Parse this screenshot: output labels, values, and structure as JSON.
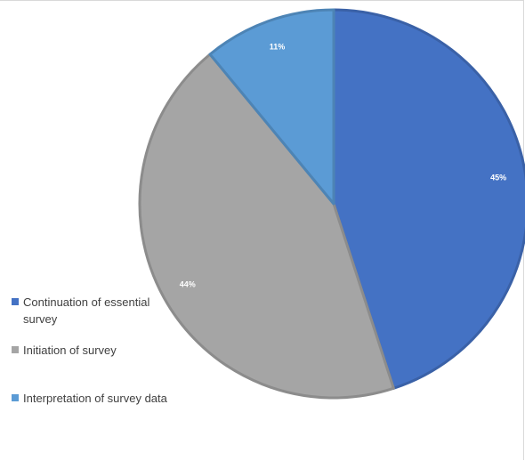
{
  "chart_data": {
    "type": "pie",
    "title": "",
    "slices": [
      {
        "label": "Continuation of essential survey",
        "value": 45,
        "display": "45%",
        "color": "#4472c4"
      },
      {
        "label": "Initiation of survey",
        "value": 44,
        "display": "44%",
        "color": "#a5a5a5"
      },
      {
        "label": "Interpretation of survey data",
        "value": 11,
        "display": "11%",
        "color": "#5b9bd5"
      }
    ],
    "start": "12 o'clock, clockwise",
    "legend_position": "left"
  }
}
